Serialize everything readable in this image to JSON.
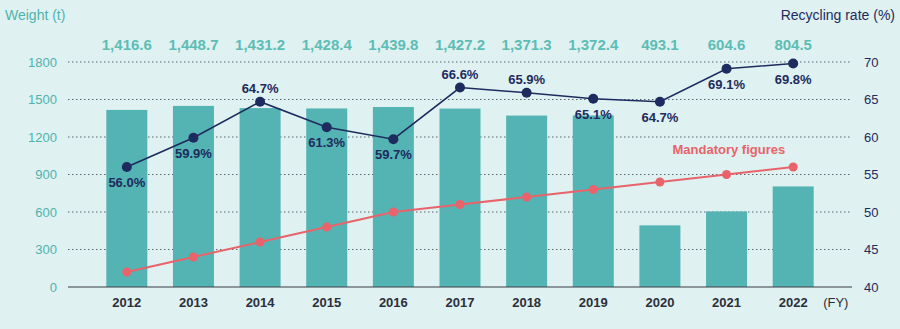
{
  "chart_data": {
    "type": "bar",
    "y_label": "Weight (t)",
    "y2_label": "Recycling rate (%)",
    "x_label": "(FY)",
    "categories": [
      "2012",
      "2013",
      "2014",
      "2015",
      "2016",
      "2017",
      "2018",
      "2019",
      "2020",
      "2021",
      "2022"
    ],
    "series": [
      {
        "type": "bar",
        "color": "#54b4b3",
        "data_labels": true,
        "values": [
          1416.6,
          1448.7,
          1431.2,
          1428.4,
          1439.8,
          1427.2,
          1371.3,
          1372.4,
          493.1,
          604.6,
          804.5
        ],
        "value_labels": [
          "1,416.6",
          "1,448.7",
          "1,431.2",
          "1,428.4",
          "1,439.8",
          "1,427.2",
          "1,371.3",
          "1,372.4",
          "493.1",
          "604.6",
          "804.5"
        ]
      },
      {
        "type": "line",
        "axis": "y2",
        "color": "#1e2b5e",
        "marker": "circle",
        "data_labels": true,
        "values": [
          56.0,
          59.9,
          64.7,
          61.3,
          59.7,
          66.6,
          65.9,
          65.1,
          64.7,
          69.1,
          69.8
        ],
        "value_labels": [
          "56.0%",
          "59.9%",
          "64.7%",
          "61.3%",
          "59.7%",
          "66.6%",
          "65.9%",
          "65.1%",
          "64.7%",
          "69.1%",
          "69.8%"
        ]
      },
      {
        "name": "Mandatory figures",
        "type": "line",
        "axis": "y2",
        "color": "#e8636a",
        "marker": "circle",
        "values": [
          42,
          44,
          46,
          48,
          50,
          51,
          52,
          53,
          54,
          55,
          56
        ]
      }
    ],
    "ylim": [
      0,
      1800
    ],
    "yticks": [
      0,
      300,
      600,
      900,
      1200,
      1500,
      1800
    ],
    "y2lim": [
      40,
      70
    ],
    "y2ticks": [
      40,
      45,
      50,
      55,
      60,
      65,
      70
    ],
    "grid": true
  }
}
